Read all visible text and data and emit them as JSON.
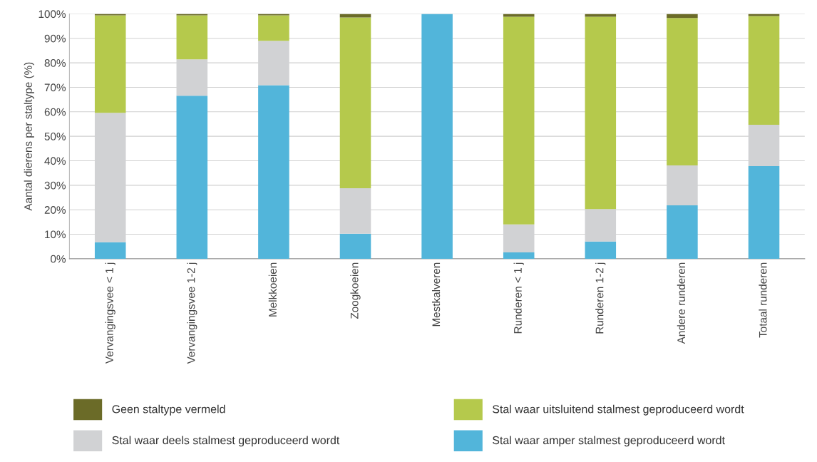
{
  "chart_data": {
    "type": "bar",
    "stacked": true,
    "ylabel": "Aantal dierens per staltype (%)",
    "categories": [
      "Vervangingsvee < 1 j",
      "Vervangingsvee 1-2 j",
      "Melkkoeien",
      "Zoogkoeien",
      "Mestkalveren",
      "Runderen < 1 j",
      "Runderen 1-2 j",
      "Andere runderen",
      "Totaal runderen"
    ],
    "series": [
      {
        "name": "Stal waar amper stalmest geproduceerd wordt",
        "color": "#52b5da",
        "values": [
          6.7,
          66.6,
          70.9,
          10.2,
          100,
          2.6,
          7.0,
          21.8,
          37.8
        ]
      },
      {
        "name": "Stal waar deels stalmest geproduceerd wordt",
        "color": "#d1d2d4",
        "values": [
          52.9,
          14.8,
          18.1,
          18.6,
          null,
          11.4,
          13.3,
          16.3,
          16.9
        ]
      },
      {
        "name": "Stal waar uitsluitend stalmest geproduceerd wordt",
        "color": "#b5c94c",
        "values": [
          39.8,
          18.0,
          10.4,
          69.7,
          null,
          84.8,
          78.5,
          60.2,
          44.4
        ]
      },
      {
        "name": "Geen staltype vermeld",
        "color": "#6b6b28",
        "values": [
          0.6,
          0.6,
          0.6,
          1.5,
          null,
          1.2,
          1.2,
          1.7,
          0.9
        ]
      }
    ],
    "ylim": [
      0,
      100
    ],
    "yticks": [
      {
        "value": 0,
        "label": "0%"
      },
      {
        "value": 10,
        "label": "10%"
      },
      {
        "value": 20,
        "label": "20%"
      },
      {
        "value": 30,
        "label": "30%"
      },
      {
        "value": 40,
        "label": "40%"
      },
      {
        "value": 50,
        "label": "50%"
      },
      {
        "value": 60,
        "label": "60%"
      },
      {
        "value": 70,
        "label": "70%"
      },
      {
        "value": 80,
        "label": "80%"
      },
      {
        "value": 90,
        "label": "90%"
      },
      {
        "value": 100,
        "label": "100%"
      }
    ],
    "grid": "y",
    "legend": "bottom"
  }
}
